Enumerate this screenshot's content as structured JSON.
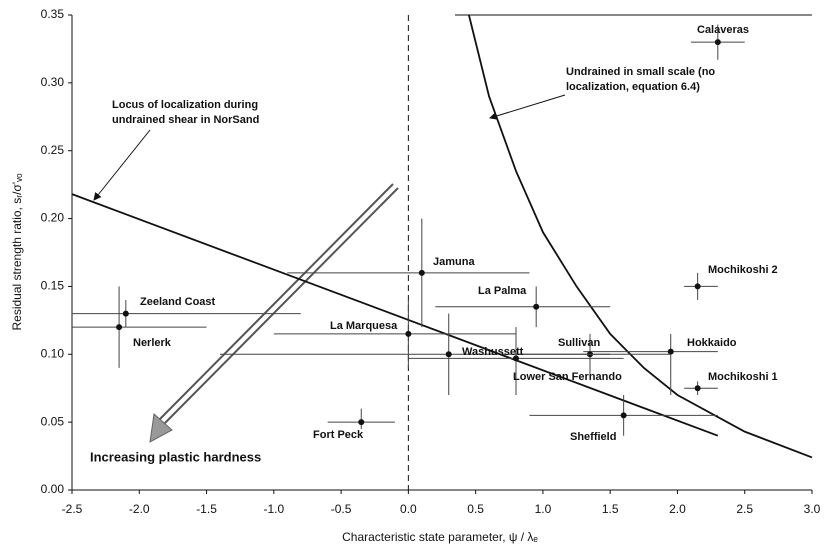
{
  "chart_data": {
    "type": "scatter",
    "x_label": "Characteristic state parameter,  ψ / λₑ",
    "y_label": "Residual strength ratio, sᵣ/σ'ᵥₒ",
    "xlim": [
      -2.5,
      3.0
    ],
    "ylim": [
      0,
      0.35
    ],
    "xticks": [
      {
        "value": -2.5,
        "label": "-2.5"
      },
      {
        "value": -2,
        "label": "-2.0"
      },
      {
        "value": -1.5,
        "label": "-1.5"
      },
      {
        "value": -1,
        "label": "-1.0"
      },
      {
        "value": -0.5,
        "label": "-0.5"
      },
      {
        "value": 0,
        "label": "0.0"
      },
      0.5,
      {
        "value": 1,
        "label": "1.0"
      },
      1.5,
      {
        "value": 2,
        "label": "2.0"
      },
      2.5,
      {
        "value": 3,
        "label": "3.0"
      }
    ],
    "yticks": [
      {
        "value": 0,
        "label": "0.00"
      },
      0.05,
      {
        "value": 0.1,
        "label": "0.10"
      },
      0.15,
      {
        "value": 0.2,
        "label": "0.20"
      },
      0.25,
      {
        "value": 0.3,
        "label": "0.30"
      },
      0.35
    ],
    "vline": 0,
    "points": [
      {
        "name": "Calaveras",
        "x": 2.3,
        "y": 0.33,
        "x_low": 2.1,
        "x_high": 2.5,
        "y_low": 0.317,
        "y_high": 0.343
      },
      {
        "name": "Mochikoshi 2",
        "x": 2.15,
        "y": 0.15,
        "x_low": 2.05,
        "x_high": 2.3,
        "y_low": 0.14,
        "y_high": 0.16
      },
      {
        "name": "Mochikoshi 1",
        "x": 2.15,
        "y": 0.075,
        "x_low": 2.05,
        "x_high": 2.3,
        "y_low": 0.07,
        "y_high": 0.08
      },
      {
        "name": "Hokkaido",
        "x": 1.95,
        "y": 0.102,
        "x_low": 1.3,
        "x_high": 2.3,
        "y_low": 0.07,
        "y_high": 0.115
      },
      {
        "name": "Sheffield",
        "x": 1.6,
        "y": 0.055,
        "x_low": 0.9,
        "x_high": 2.3,
        "y_low": 0.04,
        "y_high": 0.07
      },
      {
        "name": "Sullivan",
        "x": 1.35,
        "y": 0.1,
        "x_low": 0.8,
        "x_high": 1.95,
        "y_low": 0.085,
        "y_high": 0.115
      },
      {
        "name": "La Palma",
        "x": 0.95,
        "y": 0.135,
        "x_low": 0.2,
        "x_high": 1.5,
        "y_low": 0.12,
        "y_high": 0.15
      },
      {
        "name": "Washussett",
        "x": 0.3,
        "y": 0.1,
        "x_low": -1.4,
        "x_high": 1.5,
        "y_low": 0.07,
        "y_high": 0.13
      },
      {
        "name": "Lower San Fernando",
        "x": 0.8,
        "y": 0.097,
        "x_low": 0.0,
        "x_high": 1.6,
        "y_low": 0.07,
        "y_high": 0.12
      },
      {
        "name": "Jamuna",
        "x": 0.1,
        "y": 0.16,
        "x_low": -0.9,
        "x_high": 0.9,
        "y_low": 0.12,
        "y_high": 0.2
      },
      {
        "name": "La Marquesa",
        "x": 0,
        "y": 0.115,
        "x_low": -1.0,
        "x_high": 0.8,
        "y_low": 0.09,
        "y_high": 0.14
      },
      {
        "name": "Zeeland Coast",
        "x": -2.1,
        "y": 0.13,
        "x_low": -2.5,
        "x_high": -0.8,
        "y_low": 0.12,
        "y_high": 0.14
      },
      {
        "name": "Nerlerk",
        "x": -2.15,
        "y": 0.12,
        "x_low": -2.5,
        "x_high": -1.5,
        "y_low": 0.09,
        "y_high": 0.15
      },
      {
        "name": "Fort Peck",
        "x": -0.35,
        "y": 0.05,
        "x_low": -0.6,
        "x_high": -0.1,
        "y_low": 0.045,
        "y_high": 0.06
      }
    ],
    "curves": [
      {
        "x": [
          -2.5,
          2.3
        ],
        "values": [
          0.218,
          0.04
        ]
      },
      {
        "x": [
          0.45,
          0.6,
          0.8,
          1.0,
          1.25,
          1.5,
          1.75,
          2.0,
          2.5,
          3.0
        ],
        "values": [
          0.35,
          0.29,
          0.235,
          0.19,
          0.15,
          0.115,
          0.09,
          0.07,
          0.043,
          0.024
        ]
      }
    ],
    "annotations": [
      [
        "Locus of localization during",
        "undrained shear in NorSand"
      ],
      [
        "Undrained in small scale (no",
        "localization, equation 6.4)"
      ],
      [
        "Increasing plastic hardness"
      ]
    ]
  }
}
